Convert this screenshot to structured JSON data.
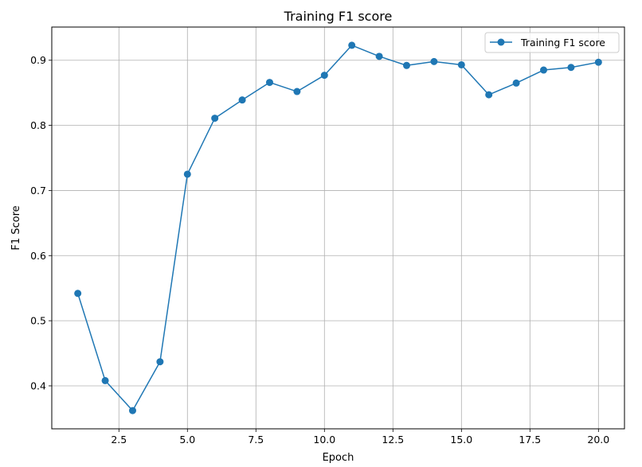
{
  "chart_data": {
    "type": "line",
    "title": "Training F1 score",
    "xlabel": "Epoch",
    "ylabel": "F1 Score",
    "xlim": [
      0.05,
      20.95
    ],
    "ylim": [
      0.334,
      0.951
    ],
    "xticks": [
      2.5,
      5.0,
      7.5,
      10.0,
      12.5,
      15.0,
      17.5,
      20.0
    ],
    "xtick_labels": [
      "2.5",
      "5.0",
      "7.5",
      "10.0",
      "12.5",
      "15.0",
      "17.5",
      "20.0"
    ],
    "yticks": [
      0.4,
      0.5,
      0.6,
      0.7,
      0.8,
      0.9
    ],
    "ytick_labels": [
      "0.4",
      "0.5",
      "0.6",
      "0.7",
      "0.8",
      "0.9"
    ],
    "grid": true,
    "legend_position": "top-right",
    "series": [
      {
        "name": "Training F1 score",
        "color": "#1f77b4",
        "marker": "circle",
        "x": [
          1,
          2,
          3,
          4,
          5,
          6,
          7,
          8,
          9,
          10,
          11,
          12,
          13,
          14,
          15,
          16,
          17,
          18,
          19,
          20
        ],
        "y": [
          0.542,
          0.408,
          0.362,
          0.437,
          0.725,
          0.811,
          0.839,
          0.866,
          0.852,
          0.877,
          0.923,
          0.906,
          0.892,
          0.898,
          0.893,
          0.847,
          0.865,
          0.885,
          0.889,
          0.897
        ]
      }
    ]
  }
}
